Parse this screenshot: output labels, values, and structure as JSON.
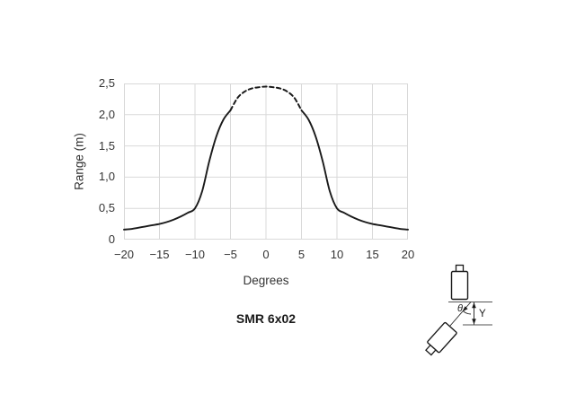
{
  "chart_data": {
    "type": "line",
    "title": "SMR 6x02",
    "xlabel": "Degrees",
    "ylabel": "Range (m)",
    "xlim": [
      -20,
      20
    ],
    "ylim": [
      0,
      2.5
    ],
    "grid": true,
    "legend": "none",
    "x_ticks": {
      "values": [
        -20,
        -15,
        -10,
        -5,
        0,
        5,
        10,
        15,
        20
      ],
      "labels": [
        "−20",
        "−15",
        "−10",
        "−5",
        "0",
        "5",
        "10",
        "15",
        "20"
      ]
    },
    "y_ticks": {
      "values": [
        0,
        0.5,
        1.0,
        1.5,
        2.0,
        2.5
      ],
      "labels": [
        "0",
        "0,5",
        "1,0",
        "1,5",
        "2,0",
        "2,5"
      ]
    },
    "series": [
      {
        "name": "beam-left-solid",
        "style": "solid",
        "points": [
          [
            -20,
            0.16
          ],
          [
            -19,
            0.17
          ],
          [
            -18,
            0.19
          ],
          [
            -17,
            0.21
          ],
          [
            -16,
            0.23
          ],
          [
            -15,
            0.25
          ],
          [
            -14,
            0.28
          ],
          [
            -13,
            0.32
          ],
          [
            -12,
            0.37
          ],
          [
            -11,
            0.43
          ],
          [
            -10,
            0.5
          ],
          [
            -9,
            0.77
          ],
          [
            -8,
            1.25
          ],
          [
            -7,
            1.65
          ],
          [
            -6,
            1.92
          ],
          [
            -5,
            2.07
          ]
        ]
      },
      {
        "name": "beam-peak-dashed",
        "style": "dashed",
        "points": [
          [
            -5,
            2.07
          ],
          [
            -4,
            2.27
          ],
          [
            -3,
            2.37
          ],
          [
            -2,
            2.42
          ],
          [
            -1,
            2.44
          ],
          [
            0,
            2.45
          ],
          [
            1,
            2.44
          ],
          [
            2,
            2.42
          ],
          [
            3,
            2.37
          ],
          [
            4,
            2.27
          ],
          [
            5,
            2.07
          ]
        ]
      },
      {
        "name": "beam-right-solid",
        "style": "solid",
        "points": [
          [
            5,
            2.07
          ],
          [
            6,
            1.92
          ],
          [
            7,
            1.65
          ],
          [
            8,
            1.25
          ],
          [
            9,
            0.77
          ],
          [
            10,
            0.5
          ],
          [
            11,
            0.43
          ],
          [
            12,
            0.37
          ],
          [
            13,
            0.32
          ],
          [
            14,
            0.28
          ],
          [
            15,
            0.25
          ],
          [
            16,
            0.23
          ],
          [
            17,
            0.21
          ],
          [
            18,
            0.19
          ],
          [
            19,
            0.17
          ],
          [
            20,
            0.16
          ]
        ]
      }
    ]
  },
  "diagram": {
    "theta_label": "θ",
    "y_label": "Y"
  },
  "colors": {
    "curve": "#1a1a1a",
    "grid": "#d9d9d9",
    "text": "#333333"
  }
}
